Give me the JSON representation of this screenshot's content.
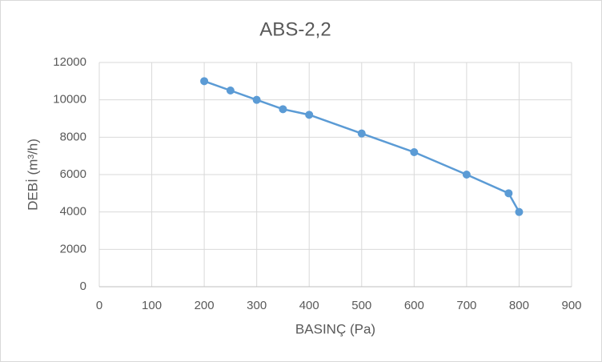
{
  "chart_data": {
    "type": "line",
    "title": "ABS-2,2",
    "x_label": "BASINÇ (Pa)",
    "y_label": "DEBİ (m³/h)",
    "x": [
      200,
      250,
      300,
      350,
      400,
      500,
      600,
      700,
      780,
      800
    ],
    "series": [
      {
        "color": "#5b9bd5",
        "values": [
          11000,
          10500,
          10000,
          9500,
          9200,
          8200,
          7200,
          6000,
          5000,
          4000
        ]
      }
    ],
    "xlim": [
      0,
      900
    ],
    "xticks": [
      0,
      100,
      200,
      300,
      400,
      500,
      600,
      700,
      800,
      900
    ],
    "ylim": [
      0,
      12000
    ],
    "yticks": [
      0,
      2000,
      4000,
      6000,
      8000,
      10000,
      12000
    ],
    "grid": true
  }
}
